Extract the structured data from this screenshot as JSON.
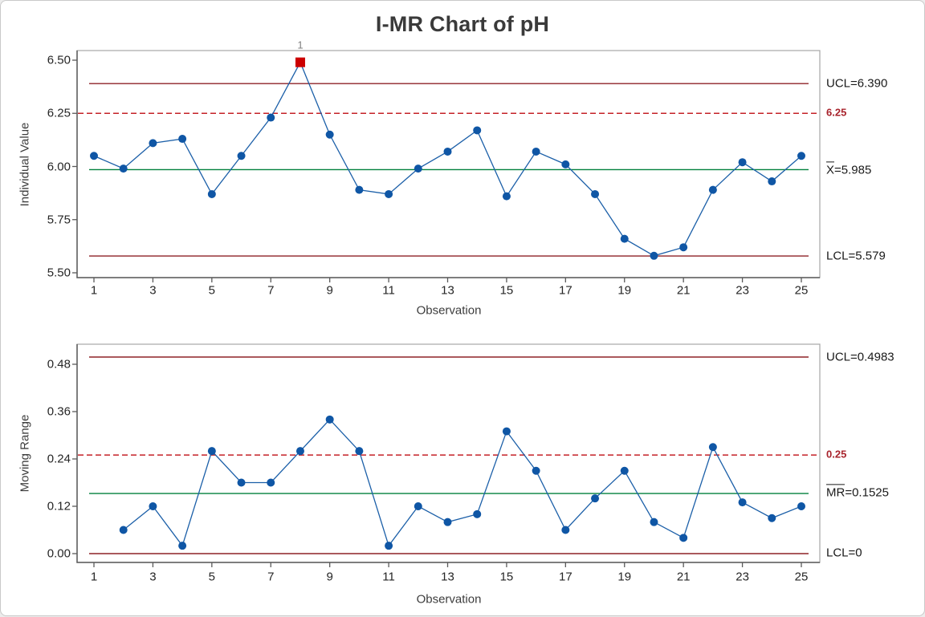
{
  "title": "I-MR Chart of pH",
  "colors": {
    "series_line": "#1b5fa8",
    "marker": "#0f56a5",
    "out_marker": "#cc0000",
    "out_label": "#7f7f7f",
    "limit_line": "#8e2227",
    "ref_line": "#c52127",
    "ref_label": "#a8232c",
    "center_line": "#00803c",
    "axis": "#5a5a5a",
    "frame": "#a6a6a6",
    "tick_text": "#262626",
    "axis_title_text": "#3d3d3d",
    "title_text": "#3a3a3a",
    "limit_label_text": "#1a1a1a"
  },
  "chart_data": [
    {
      "type": "line",
      "name": "individuals",
      "ylabel": "Individual Value",
      "xlabel": "Observation",
      "x": [
        1,
        2,
        3,
        4,
        5,
        6,
        7,
        8,
        9,
        10,
        11,
        12,
        13,
        14,
        15,
        16,
        17,
        18,
        19,
        20,
        21,
        22,
        23,
        24,
        25
      ],
      "values": [
        6.05,
        5.99,
        6.11,
        6.13,
        5.87,
        6.05,
        6.23,
        6.49,
        6.15,
        5.89,
        5.87,
        5.99,
        6.07,
        6.17,
        5.86,
        6.07,
        6.01,
        5.87,
        5.66,
        5.58,
        5.62,
        5.89,
        6.02,
        5.93,
        6.05
      ],
      "ylim": [
        5.5,
        6.55
      ],
      "yticks": [
        "6.50",
        "6.25",
        "6.00",
        "5.75",
        "5.50"
      ],
      "xticks": [
        "1",
        "3",
        "5",
        "7",
        "9",
        "11",
        "13",
        "15",
        "17",
        "19",
        "21",
        "23",
        "25"
      ],
      "ucl": 6.39,
      "center": 5.985,
      "lcl": 5.579,
      "ref": 6.25,
      "labels": {
        "ucl": "UCL=6.390",
        "ref": "6.25",
        "center_bar": "X",
        "center_rest": "=5.985",
        "lcl": "LCL=5.579"
      },
      "out_points": [
        {
          "x": 8,
          "label": "1"
        }
      ],
      "grid": "off",
      "legend": "none"
    },
    {
      "type": "line",
      "name": "moving_range",
      "ylabel": "Moving Range",
      "xlabel": "Observation",
      "x": [
        2,
        3,
        4,
        5,
        6,
        7,
        8,
        9,
        10,
        11,
        12,
        13,
        14,
        15,
        16,
        17,
        18,
        19,
        20,
        21,
        22,
        23,
        24,
        25
      ],
      "values": [
        0.06,
        0.12,
        0.02,
        0.26,
        0.18,
        0.18,
        0.26,
        0.34,
        0.26,
        0.02,
        0.12,
        0.08,
        0.1,
        0.31,
        0.21,
        0.06,
        0.14,
        0.21,
        0.08,
        0.04,
        0.27,
        0.13,
        0.09,
        0.12
      ],
      "ylim": [
        -0.02,
        0.52
      ],
      "yticks": [
        "0.48",
        "0.36",
        "0.24",
        "0.12",
        "0.00"
      ],
      "xticks": [
        "1",
        "3",
        "5",
        "7",
        "9",
        "11",
        "13",
        "15",
        "17",
        "19",
        "21",
        "23",
        "25"
      ],
      "ucl": 0.4983,
      "center": 0.1525,
      "lcl": 0,
      "ref": 0.25,
      "labels": {
        "ucl": "UCL=0.4983",
        "ref": "0.25",
        "center_bar": "MR",
        "center_rest": "=0.1525",
        "lcl": "LCL=0"
      },
      "out_points": [],
      "grid": "off",
      "legend": "none"
    }
  ]
}
